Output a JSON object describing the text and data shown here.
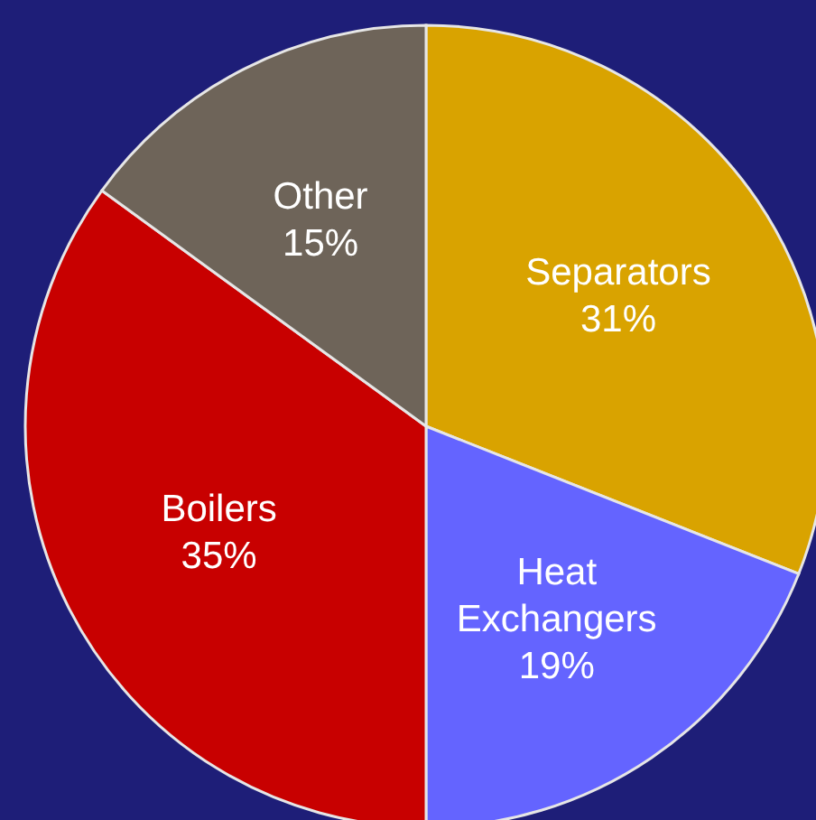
{
  "chart_data": {
    "type": "pie",
    "categories": [
      "Separators",
      "Heat Exchangers",
      "Boilers",
      "Other"
    ],
    "values": [
      31,
      19,
      35,
      15
    ],
    "value_labels": [
      "31%",
      "19%",
      "35%",
      "15%"
    ],
    "colors": [
      "#d9a300",
      "#6464ff",
      "#c80000",
      "#6e6459"
    ]
  }
}
